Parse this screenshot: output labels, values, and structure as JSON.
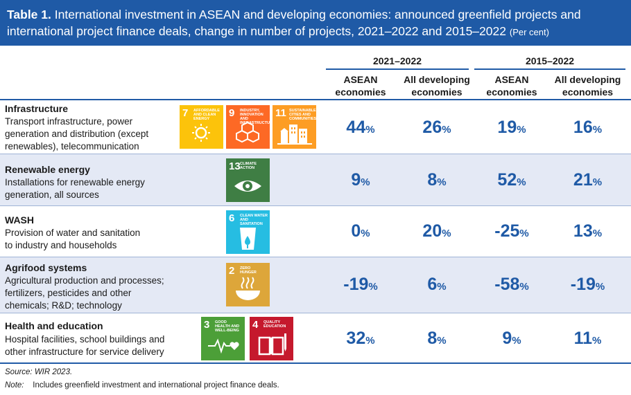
{
  "title": {
    "label": "Table 1.",
    "text_line1": "International investment in ASEAN and developing economies: announced greenfield projects and",
    "text_line2": "international project finance deals, change in number of projects, 2021–2022 and 2015–2022",
    "unit": "(Per cent)"
  },
  "column_groups": [
    {
      "label": "2021–2022"
    },
    {
      "label": "2015–2022"
    }
  ],
  "columns": [
    {
      "line1": "ASEAN",
      "line2": "economies"
    },
    {
      "line1": "All developing",
      "line2": "economies"
    },
    {
      "line1": "ASEAN",
      "line2": "economies"
    },
    {
      "line1": "All developing",
      "line2": "economies"
    }
  ],
  "rows": [
    {
      "title": "Infrastructure",
      "desc": [
        "Transport infrastructure, power",
        "generation and distribution (except",
        "renewables), telecommunication"
      ],
      "sdgs": [
        {
          "num": "7",
          "label": "AFFORDABLE AND CLEAN ENERGY",
          "color": "#fcc30b",
          "icon": "sun-icon"
        },
        {
          "num": "9",
          "label": "INDUSTRY, INNOVATION AND INFRASTRUCTURE",
          "color": "#fd6925",
          "icon": "cubes-icon"
        },
        {
          "num": "11",
          "label": "SUSTAINABLE CITIES AND COMMUNITIES",
          "color": "#fd9d24",
          "icon": "buildings-icon"
        }
      ],
      "values": [
        "44",
        "26",
        "19",
        "16"
      ]
    },
    {
      "title": "Renewable energy",
      "desc": [
        "Installations for renewable energy",
        "generation, all sources"
      ],
      "sdgs": [
        {
          "num": "13",
          "label": "CLIMATE ACTION",
          "color": "#3f7e44",
          "icon": "eye-globe-icon"
        }
      ],
      "values": [
        "9",
        "8",
        "52",
        "21"
      ]
    },
    {
      "title": "WASH",
      "desc": [
        "Provision of water and sanitation",
        "to industry and households"
      ],
      "sdgs": [
        {
          "num": "6",
          "label": "CLEAN WATER AND SANITATION",
          "color": "#26bde2",
          "icon": "water-glass-icon"
        }
      ],
      "values": [
        "0",
        "20",
        "-25",
        "13"
      ]
    },
    {
      "title": "Agrifood systems",
      "desc": [
        "Agricultural production and processes;",
        "fertilizers, pesticides and other",
        "chemicals; R&D; technology"
      ],
      "sdgs": [
        {
          "num": "2",
          "label": "ZERO HUNGER",
          "color": "#dda63a",
          "icon": "bowl-icon"
        }
      ],
      "values": [
        "-19",
        "6",
        "-58",
        "-19"
      ]
    },
    {
      "title": "Health and education",
      "desc": [
        "Hospital facilities, school buildings and",
        "other infrastructure for service delivery"
      ],
      "sdgs": [
        {
          "num": "3",
          "label": "GOOD HEALTH AND WELL-BEING",
          "color": "#4c9f38",
          "icon": "heartbeat-icon"
        },
        {
          "num": "4",
          "label": "QUALITY EDUCATION",
          "color": "#c5192d",
          "icon": "book-icon"
        }
      ],
      "values": [
        "32",
        "8",
        "9",
        "11"
      ]
    }
  ],
  "unit_symbol": "%",
  "source": "Source: WIR 2023.",
  "note_label": "Note:",
  "note_text": "Includes greenfield investment and international project finance deals.",
  "colors": {
    "accent": "#1f5aa6",
    "shade": "#e4e9f5"
  }
}
